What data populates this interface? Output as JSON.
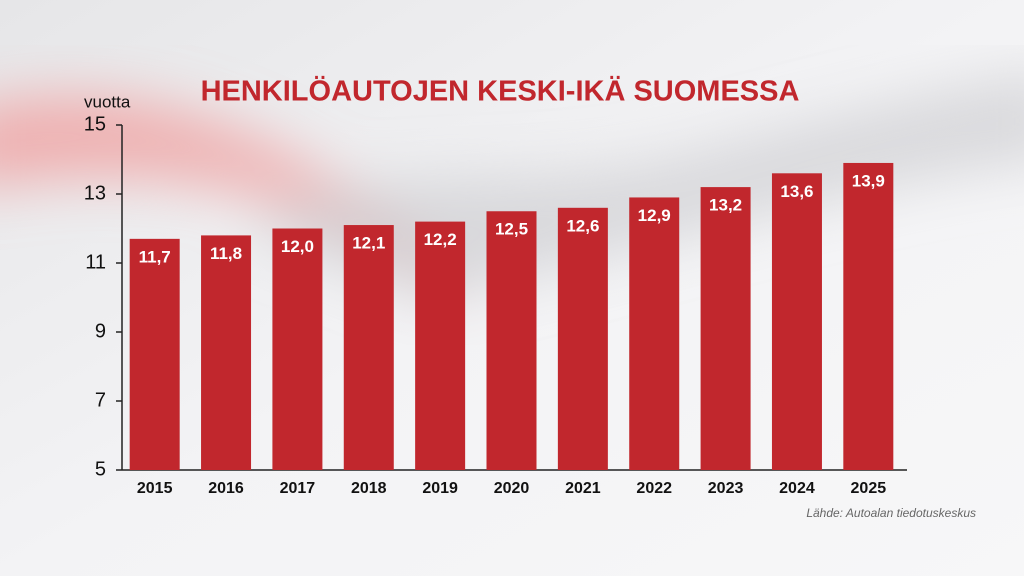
{
  "chart_data": {
    "type": "bar",
    "title": "HENKILÖAUTOJEN KESKI-IKÄ SUOMESSA",
    "y_label": "vuotta",
    "source": "Lähde: Autoalan tiedotuskeskus",
    "categories": [
      "2015",
      "2016",
      "2017",
      "2018",
      "2019",
      "2020",
      "2021",
      "2022",
      "2023",
      "2024",
      "2025"
    ],
    "values": [
      11.7,
      11.8,
      12.0,
      12.1,
      12.2,
      12.5,
      12.6,
      12.9,
      13.2,
      13.6,
      13.9
    ],
    "value_labels": [
      "11,7",
      "11,8",
      "12,0",
      "12,1",
      "12,2",
      "12,5",
      "12,6",
      "12,9",
      "13,2",
      "13,6",
      "13,9"
    ],
    "color": "#c1272d",
    "ylim": [
      5,
      15
    ],
    "yticks": [
      5,
      7,
      9,
      11,
      13,
      15
    ]
  }
}
